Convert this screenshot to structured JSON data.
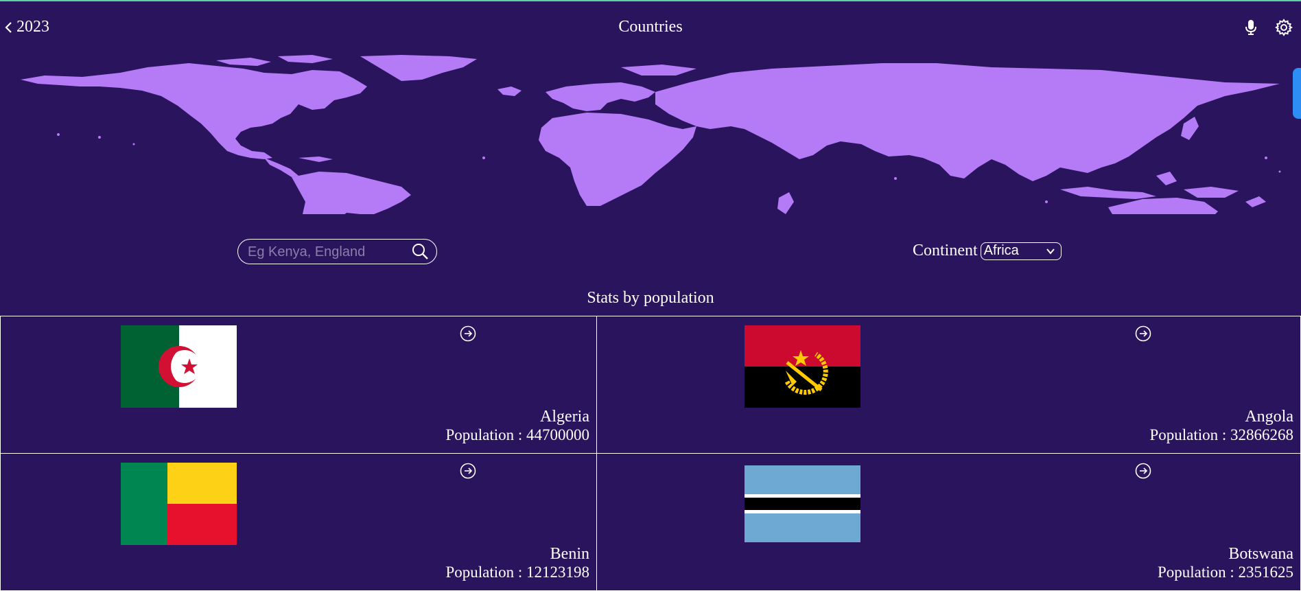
{
  "header": {
    "back_label": "2023",
    "title": "Countries"
  },
  "search": {
    "placeholder": "Eg Kenya, England",
    "value": ""
  },
  "filter": {
    "label": "Continent",
    "selected": "Africa"
  },
  "section_title": "Stats by population",
  "population_prefix": "Population : ",
  "countries": [
    {
      "name": "Algeria",
      "population": "44700000",
      "flag": "algeria-flag"
    },
    {
      "name": "Angola",
      "population": "32866268",
      "flag": "angola-flag"
    },
    {
      "name": "Benin",
      "population": "12123198",
      "flag": "benin-flag"
    },
    {
      "name": "Botswana",
      "population": "2351625",
      "flag": "botswana-flag"
    }
  ],
  "colors": {
    "background": "#2b145e",
    "map_land": "#b57bf7",
    "text": "#ffffff",
    "accent_tab": "#2d8ef5"
  },
  "icons": [
    "chevron-left-icon",
    "microphone-icon",
    "gear-icon",
    "search-icon",
    "chevron-down-icon",
    "arrow-right-circle-icon"
  ]
}
